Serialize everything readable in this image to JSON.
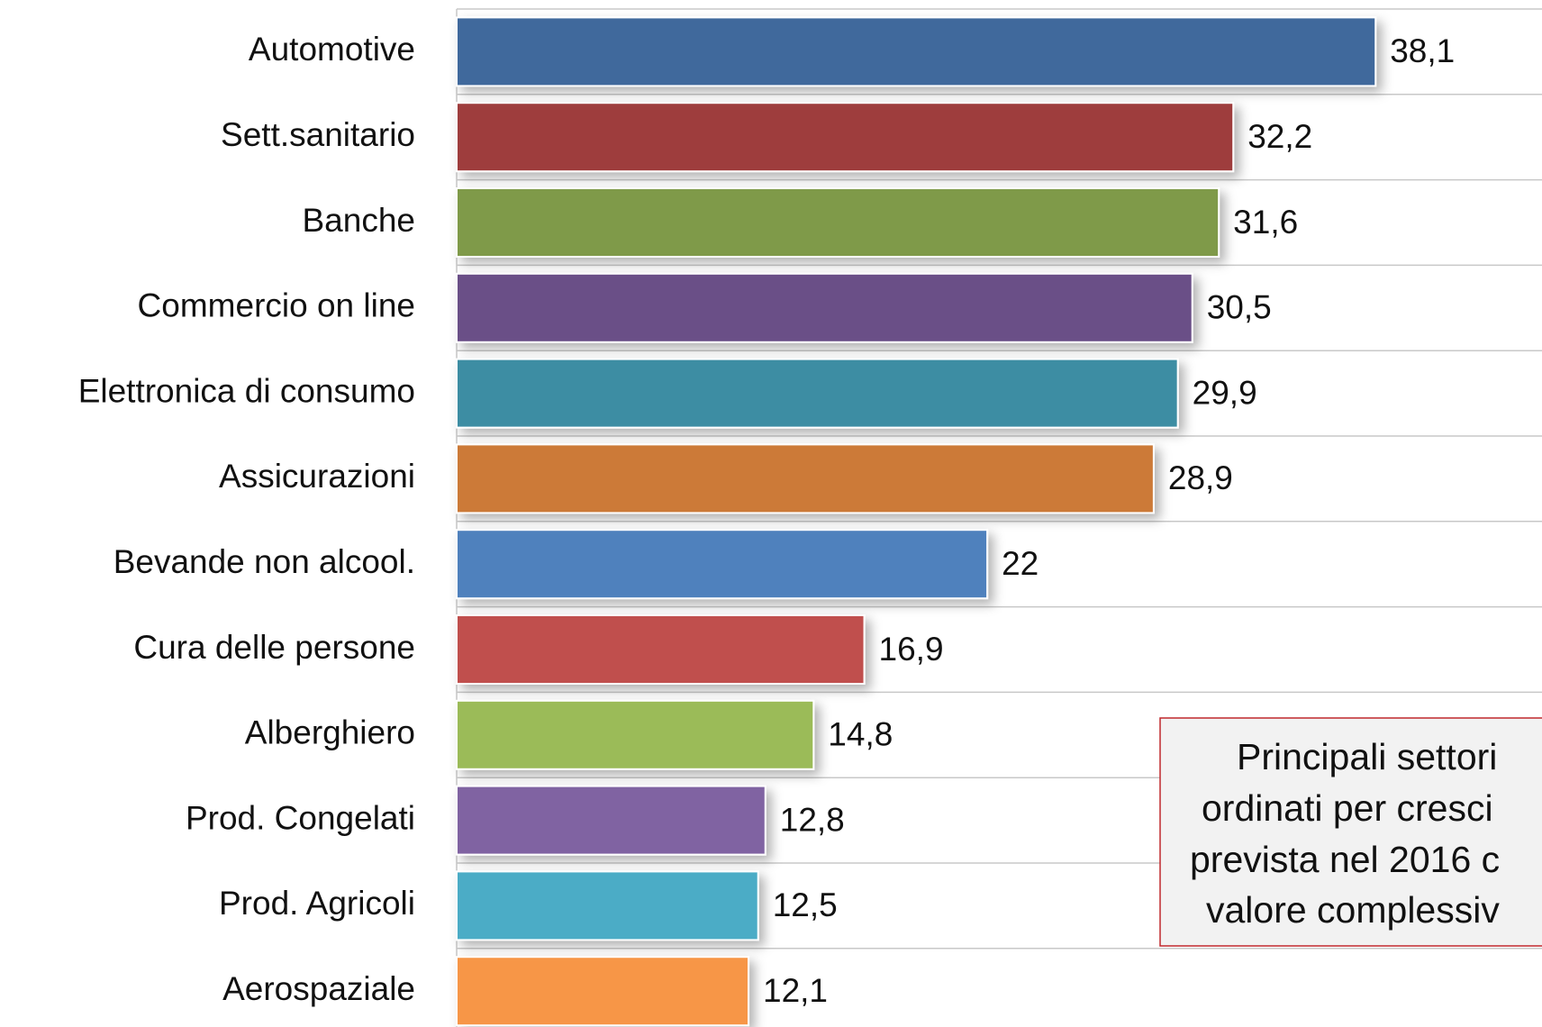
{
  "chart_data": {
    "type": "bar",
    "orientation": "horizontal",
    "categories": [
      "Automotive",
      "Sett.sanitario",
      "Banche",
      "Commercio on line",
      "Elettronica di consumo",
      "Assicurazioni",
      "Bevande non alcool.",
      "Cura delle persone",
      "Alberghiero",
      "Prod. Congelati",
      "Prod. Agricoli",
      "Aerospaziale"
    ],
    "values": [
      38.1,
      32.2,
      31.6,
      30.5,
      29.9,
      28.9,
      22,
      16.9,
      14.8,
      12.8,
      12.5,
      12.1
    ],
    "value_labels": [
      "38,1",
      "32,2",
      "31,6",
      "30,5",
      "29,9",
      "28,9",
      "22",
      "16,9",
      "14,8",
      "12,8",
      "12,5",
      "12,1"
    ],
    "colors": [
      "#41699c",
      "#9e3e3d",
      "#7f9a48",
      "#6a4f87",
      "#3c8da3",
      "#cc7a37",
      "#4f81bd",
      "#c0504d",
      "#9bbb59",
      "#8064a2",
      "#4bacc6",
      "#f79646"
    ],
    "xlim": [
      0,
      45
    ],
    "annotation": [
      "Principali settori",
      "ordinati per cresci",
      "prevista nel 2016 c",
      "valore complessiv"
    ]
  }
}
